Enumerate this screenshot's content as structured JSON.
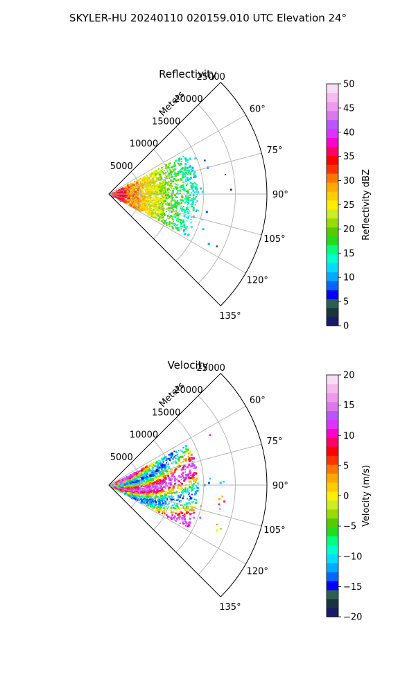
{
  "title": "SKYLER-HU  20240110  020159.010 UTC Elevation 24°",
  "chart_data": [
    {
      "type": "heatmap",
      "projection": "polar-sector",
      "title": "Reflectivity",
      "radial_label": "Meters",
      "radial_ticks": [
        5000,
        10000,
        15000,
        20000,
        25000
      ],
      "radial_tick_labels": [
        "5000",
        "10000",
        "15000",
        "20000",
        "25000"
      ],
      "rlim": [
        0,
        25000
      ],
      "angle_range_deg": [
        45,
        135
      ],
      "angle_ticks": [
        60,
        75,
        90,
        105,
        120,
        135
      ],
      "angle_tick_labels": [
        "60°",
        "75°",
        "90°",
        "105°",
        "120°",
        "135°"
      ],
      "grid": true,
      "data_extent_m": 14000,
      "colorbar": {
        "label": "Reflectivity dBZ",
        "range": [
          0,
          50
        ],
        "ticks": [
          0,
          5,
          10,
          15,
          20,
          25,
          30,
          35,
          40,
          45,
          50
        ],
        "tick_labels": [
          "0",
          "5",
          "10",
          "15",
          "20",
          "25",
          "30",
          "35",
          "40",
          "45",
          "50"
        ],
        "colors": [
          "#1a1a66",
          "#1a3340",
          "#2b6050",
          "#0000ff",
          "#0066ff",
          "#00aaff",
          "#00ddff",
          "#00ffcc",
          "#00ff80",
          "#20dd20",
          "#55cc00",
          "#99dd00",
          "#ccee22",
          "#ffee00",
          "#ffcc00",
          "#ffaa00",
          "#ff7700",
          "#ff3300",
          "#ff0000",
          "#ff0066",
          "#ff00cc",
          "#dd33ff",
          "#bb55ff",
          "#dd77ee",
          "#ee99ee",
          "#f4bbee",
          "#f8ddf5"
        ]
      }
    },
    {
      "type": "heatmap",
      "projection": "polar-sector",
      "title": "Velocity",
      "radial_label": "Meters",
      "radial_ticks": [
        5000,
        10000,
        15000,
        20000,
        25000
      ],
      "radial_tick_labels": [
        "5000",
        "10000",
        "15000",
        "20000",
        "25000"
      ],
      "rlim": [
        0,
        25000
      ],
      "angle_range_deg": [
        45,
        135
      ],
      "angle_ticks": [
        60,
        75,
        90,
        105,
        120,
        135
      ],
      "angle_tick_labels": [
        "60°",
        "75°",
        "90°",
        "105°",
        "120°",
        "135°"
      ],
      "grid": true,
      "data_extent_m": 14000,
      "colorbar": {
        "label": "Velocity (m/s)",
        "range": [
          -20,
          20
        ],
        "ticks": [
          -20,
          -15,
          -10,
          -5,
          0,
          5,
          10,
          15,
          20
        ],
        "tick_labels": [
          "−20",
          "−15",
          "−10",
          "−5",
          "0",
          "5",
          "10",
          "15",
          "20"
        ],
        "colors": [
          "#1a1a66",
          "#1a3340",
          "#2b6050",
          "#0000ff",
          "#0066ff",
          "#00aaff",
          "#00ddff",
          "#00ffcc",
          "#00ff80",
          "#20dd20",
          "#55cc00",
          "#99dd00",
          "#ccee22",
          "#ffee00",
          "#ffcc00",
          "#ffaa00",
          "#ff7700",
          "#ff3300",
          "#ff0000",
          "#ff0066",
          "#ff00cc",
          "#dd33ff",
          "#bb55ff",
          "#dd77ee",
          "#ee99ee",
          "#f4bbee",
          "#f8ddf5"
        ]
      }
    }
  ]
}
